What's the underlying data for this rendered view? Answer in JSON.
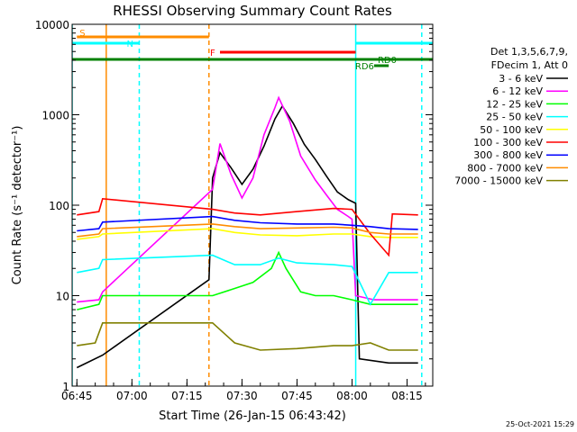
{
  "chart_data": {
    "type": "line",
    "title": "RHESSI Observing Summary Count Rates",
    "xlabel": "Start Time (26-Jan-15 06:43:42)",
    "ylabel": "Count Rate (s⁻¹ detector⁻¹)",
    "y_scale": "log",
    "ylim": [
      1,
      10000
    ],
    "xlim": [
      "06:43:42",
      "08:22:00"
    ],
    "x_ticks": [
      "06:45",
      "07:00",
      "07:15",
      "07:30",
      "07:45",
      "08:00",
      "08:15"
    ],
    "y_ticks": [
      "1",
      "10",
      "100",
      "1000",
      "10000"
    ],
    "timestamp": "25-Oct-2021 15:29",
    "legend": {
      "header": [
        "Det 1,3,5,6,7,9,",
        "FDecim 1, Att 0"
      ],
      "position": "right"
    },
    "series": [
      {
        "name": "3 - 6 keV",
        "color": "#000000",
        "points": [
          [
            "06:45",
            1.6
          ],
          [
            "06:52",
            2.2
          ],
          [
            "07:21",
            15
          ],
          [
            "07:22",
            200
          ],
          [
            "07:24",
            380
          ],
          [
            "07:27",
            260
          ],
          [
            "07:30",
            170
          ],
          [
            "07:33",
            250
          ],
          [
            "07:36",
            450
          ],
          [
            "07:39",
            900
          ],
          [
            "07:41",
            1250
          ],
          [
            "07:44",
            800
          ],
          [
            "07:47",
            470
          ],
          [
            "07:50",
            320
          ],
          [
            "07:53",
            210
          ],
          [
            "07:56",
            140
          ],
          [
            "07:59",
            115
          ],
          [
            "08:01",
            105
          ],
          [
            "08:02",
            2
          ],
          [
            "08:10",
            1.8
          ],
          [
            "08:18",
            1.8
          ]
        ]
      },
      {
        "name": "6 - 12 keV",
        "color": "#ff00ff",
        "points": [
          [
            "06:45",
            8.5
          ],
          [
            "06:51",
            9
          ],
          [
            "06:52",
            11
          ],
          [
            "07:22",
            150
          ],
          [
            "07:24",
            480
          ],
          [
            "07:27",
            220
          ],
          [
            "07:30",
            120
          ],
          [
            "07:33",
            200
          ],
          [
            "07:36",
            600
          ],
          [
            "07:39",
            1200
          ],
          [
            "07:40",
            1550
          ],
          [
            "07:43",
            850
          ],
          [
            "07:46",
            350
          ],
          [
            "07:50",
            190
          ],
          [
            "07:53",
            130
          ],
          [
            "07:56",
            90
          ],
          [
            "07:59",
            75
          ],
          [
            "08:00",
            70
          ],
          [
            "08:01",
            10
          ],
          [
            "08:06",
            9
          ],
          [
            "08:18",
            9
          ]
        ]
      },
      {
        "name": "12 - 25 keV",
        "color": "#00ff00",
        "points": [
          [
            "06:45",
            7
          ],
          [
            "06:51",
            8
          ],
          [
            "06:52",
            10
          ],
          [
            "07:22",
            10
          ],
          [
            "07:28",
            12
          ],
          [
            "07:33",
            14
          ],
          [
            "07:38",
            20
          ],
          [
            "07:40",
            30
          ],
          [
            "07:42",
            20
          ],
          [
            "07:46",
            11
          ],
          [
            "07:50",
            10
          ],
          [
            "07:55",
            10
          ],
          [
            "08:00",
            9
          ],
          [
            "08:05",
            8
          ],
          [
            "08:10",
            8
          ],
          [
            "08:18",
            8
          ]
        ]
      },
      {
        "name": "25 - 50 keV",
        "color": "#00ffff",
        "points": [
          [
            "06:45",
            18
          ],
          [
            "06:51",
            20
          ],
          [
            "06:52",
            25
          ],
          [
            "07:22",
            28
          ],
          [
            "07:28",
            22
          ],
          [
            "07:35",
            22
          ],
          [
            "07:40",
            26
          ],
          [
            "07:45",
            23
          ],
          [
            "07:55",
            22
          ],
          [
            "08:00",
            21
          ],
          [
            "08:05",
            8
          ],
          [
            "08:10",
            18
          ],
          [
            "08:18",
            18
          ]
        ]
      },
      {
        "name": "50 - 100 keV",
        "color": "#ffff00",
        "points": [
          [
            "06:45",
            42
          ],
          [
            "06:51",
            45
          ],
          [
            "06:52",
            48
          ],
          [
            "07:22",
            55
          ],
          [
            "07:28",
            50
          ],
          [
            "07:35",
            47
          ],
          [
            "07:45",
            46
          ],
          [
            "07:55",
            48
          ],
          [
            "08:00",
            48
          ],
          [
            "08:05",
            45
          ],
          [
            "08:10",
            44
          ],
          [
            "08:18",
            44
          ]
        ]
      },
      {
        "name": "100 - 300 keV",
        "color": "#ff0000",
        "points": [
          [
            "06:45",
            78
          ],
          [
            "06:51",
            85
          ],
          [
            "06:52",
            118
          ],
          [
            "07:22",
            90
          ],
          [
            "07:28",
            82
          ],
          [
            "07:35",
            78
          ],
          [
            "07:45",
            85
          ],
          [
            "07:55",
            92
          ],
          [
            "08:00",
            90
          ],
          [
            "08:05",
            48
          ],
          [
            "08:10",
            28
          ],
          [
            "08:11",
            80
          ],
          [
            "08:18",
            78
          ]
        ]
      },
      {
        "name": "300 - 800 keV",
        "color": "#0000ff",
        "points": [
          [
            "06:45",
            52
          ],
          [
            "06:51",
            55
          ],
          [
            "06:52",
            65
          ],
          [
            "07:22",
            75
          ],
          [
            "07:28",
            68
          ],
          [
            "07:35",
            64
          ],
          [
            "07:45",
            62
          ],
          [
            "07:55",
            62
          ],
          [
            "08:00",
            60
          ],
          [
            "08:05",
            58
          ],
          [
            "08:10",
            55
          ],
          [
            "08:18",
            54
          ]
        ]
      },
      {
        "name": "800 - 7000 keV",
        "color": "#ff8c00",
        "points": [
          [
            "06:45",
            45
          ],
          [
            "06:51",
            48
          ],
          [
            "06:52",
            55
          ],
          [
            "07:22",
            62
          ],
          [
            "07:28",
            58
          ],
          [
            "07:35",
            55
          ],
          [
            "07:45",
            56
          ],
          [
            "07:55",
            57
          ],
          [
            "08:00",
            56
          ],
          [
            "08:05",
            50
          ],
          [
            "08:10",
            48
          ],
          [
            "08:18",
            48
          ]
        ]
      },
      {
        "name": "7000 - 15000 keV",
        "color": "#808000",
        "points": [
          [
            "06:45",
            2.8
          ],
          [
            "06:50",
            3
          ],
          [
            "06:52",
            5
          ],
          [
            "07:22",
            5
          ],
          [
            "07:28",
            3
          ],
          [
            "07:35",
            2.5
          ],
          [
            "07:45",
            2.6
          ],
          [
            "07:55",
            2.8
          ],
          [
            "08:00",
            2.8
          ],
          [
            "08:05",
            3
          ],
          [
            "08:10",
            2.5
          ],
          [
            "08:18",
            2.5
          ]
        ]
      }
    ],
    "annotations": [
      {
        "label": "S",
        "color": "#ff8c00",
        "start": "06:45",
        "end": "07:21"
      },
      {
        "label": "N",
        "color": "#00ffff",
        "start": "06:43:42",
        "end": "07:02"
      },
      {
        "label": "N",
        "color": "#00ffff",
        "start": "08:01",
        "end": "08:22"
      },
      {
        "label": "F",
        "color": "#ff0000",
        "start": "07:24",
        "end": "08:01"
      },
      {
        "label": "RD0",
        "color": "#008000",
        "start": "06:43:42",
        "end": "08:22"
      },
      {
        "label": "RD6",
        "color": "#008000",
        "start": "08:06",
        "end": "08:10"
      }
    ],
    "vertical_markers": [
      {
        "time": "06:43:42",
        "color": "#00ffff",
        "style": "solid"
      },
      {
        "time": "06:53",
        "color": "#ff8c00",
        "style": "solid"
      },
      {
        "time": "07:02",
        "color": "#00ffff",
        "style": "dashed"
      },
      {
        "time": "07:21",
        "color": "#ff8c00",
        "style": "dashed"
      },
      {
        "time": "08:01",
        "color": "#00ffff",
        "style": "solid"
      },
      {
        "time": "08:19",
        "color": "#00ffff",
        "style": "dashed"
      }
    ]
  }
}
